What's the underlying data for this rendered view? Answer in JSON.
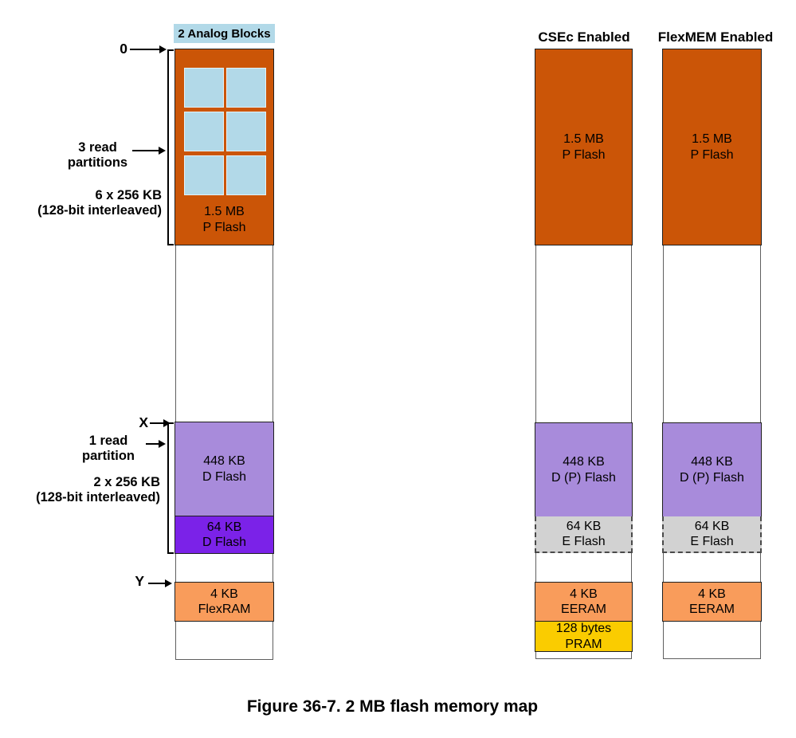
{
  "figure": {
    "caption": "Figure 36-7. 2 MB flash memory map"
  },
  "colors": {
    "pflash_orange": "#CB5507",
    "analog_blue": "#B2D9E8",
    "dflash_light_purple": "#A88BDB",
    "dflash_dark_purple": "#7B22E8",
    "eflash_gray": "#D2D2D2",
    "flexram_orange": "#F99C5B",
    "pram_yellow": "#FACC00"
  },
  "annotations": {
    "analog_blocks": "2 Analog Blocks",
    "addr_zero": "0",
    "addr_x": "X",
    "addr_y": "Y",
    "pflash_partitions_line1": "3 read",
    "pflash_partitions_line2": "partitions",
    "pflash_interleave_line1": "6 x 256 KB",
    "pflash_interleave_line2": "(128-bit interleaved)",
    "dflash_partitions_line1": "1 read",
    "dflash_partitions_line2": "partition",
    "dflash_interleave_line1": "2 x 256 KB",
    "dflash_interleave_line2": "(128-bit interleaved)"
  },
  "columns": {
    "default": {
      "pflash": {
        "l1": "1.5 MB",
        "l2": "P Flash"
      },
      "dflash448": {
        "l1": "448 KB",
        "l2": "D Flash"
      },
      "dflash64": {
        "l1": "64 KB",
        "l2": "D Flash"
      },
      "flexram": {
        "l1": "4 KB",
        "l2": "FlexRAM"
      }
    },
    "csec": {
      "header": "CSEc Enabled",
      "pflash": {
        "l1": "1.5 MB",
        "l2": "P Flash"
      },
      "dpflash": {
        "l1": "448 KB",
        "l2": "D (P) Flash"
      },
      "eflash": {
        "l1": "64 KB",
        "l2": "E Flash"
      },
      "eeram": {
        "l1": "4 KB",
        "l2": "EERAM"
      },
      "pram": {
        "l1": "128 bytes",
        "l2": "PRAM"
      }
    },
    "flexmem": {
      "header": "FlexMEM Enabled",
      "pflash": {
        "l1": "1.5 MB",
        "l2": "P Flash"
      },
      "dpflash": {
        "l1": "448 KB",
        "l2": "D (P) Flash"
      },
      "eflash": {
        "l1": "64 KB",
        "l2": "E Flash"
      },
      "eeram": {
        "l1": "4 KB",
        "l2": "EERAM"
      }
    }
  }
}
